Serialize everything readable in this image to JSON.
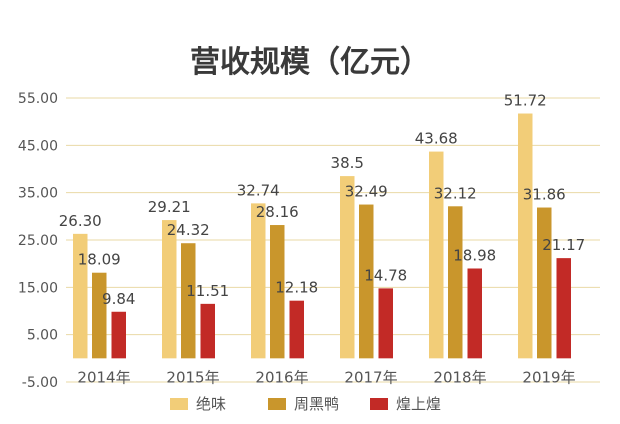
{
  "chart_data": {
    "type": "bar",
    "title": "营收规模（亿元）",
    "categories": [
      "2014年",
      "2015年",
      "2016年",
      "2017年",
      "2018年",
      "2019年"
    ],
    "series": [
      {
        "name": "绝味",
        "color": "#f2cd78",
        "values": [
          26.3,
          29.21,
          32.74,
          38.5,
          43.68,
          51.72
        ],
        "labels": [
          "26.30",
          "29.21",
          "32.74",
          "38.5",
          "43.68",
          "51.72"
        ]
      },
      {
        "name": "周黑鸭",
        "color": "#c9962c",
        "values": [
          18.09,
          24.32,
          28.16,
          32.49,
          32.12,
          31.86
        ],
        "labels": [
          "18.09",
          "24.32",
          "28.16",
          "32.49",
          "32.12",
          "31.86"
        ]
      },
      {
        "name": "煌上煌",
        "color": "#c22a26",
        "values": [
          9.84,
          11.51,
          12.18,
          14.78,
          18.98,
          21.17
        ],
        "labels": [
          "9.84",
          "11.51",
          "12.18",
          "14.78",
          "18.98",
          "21.17"
        ]
      }
    ],
    "yticks": [
      "55.00",
      "45.00",
      "35.00",
      "25.00",
      "15.00",
      "5.00",
      "-5.00"
    ],
    "ylim": [
      -5,
      55
    ],
    "grid": true,
    "legend": "bottom"
  }
}
